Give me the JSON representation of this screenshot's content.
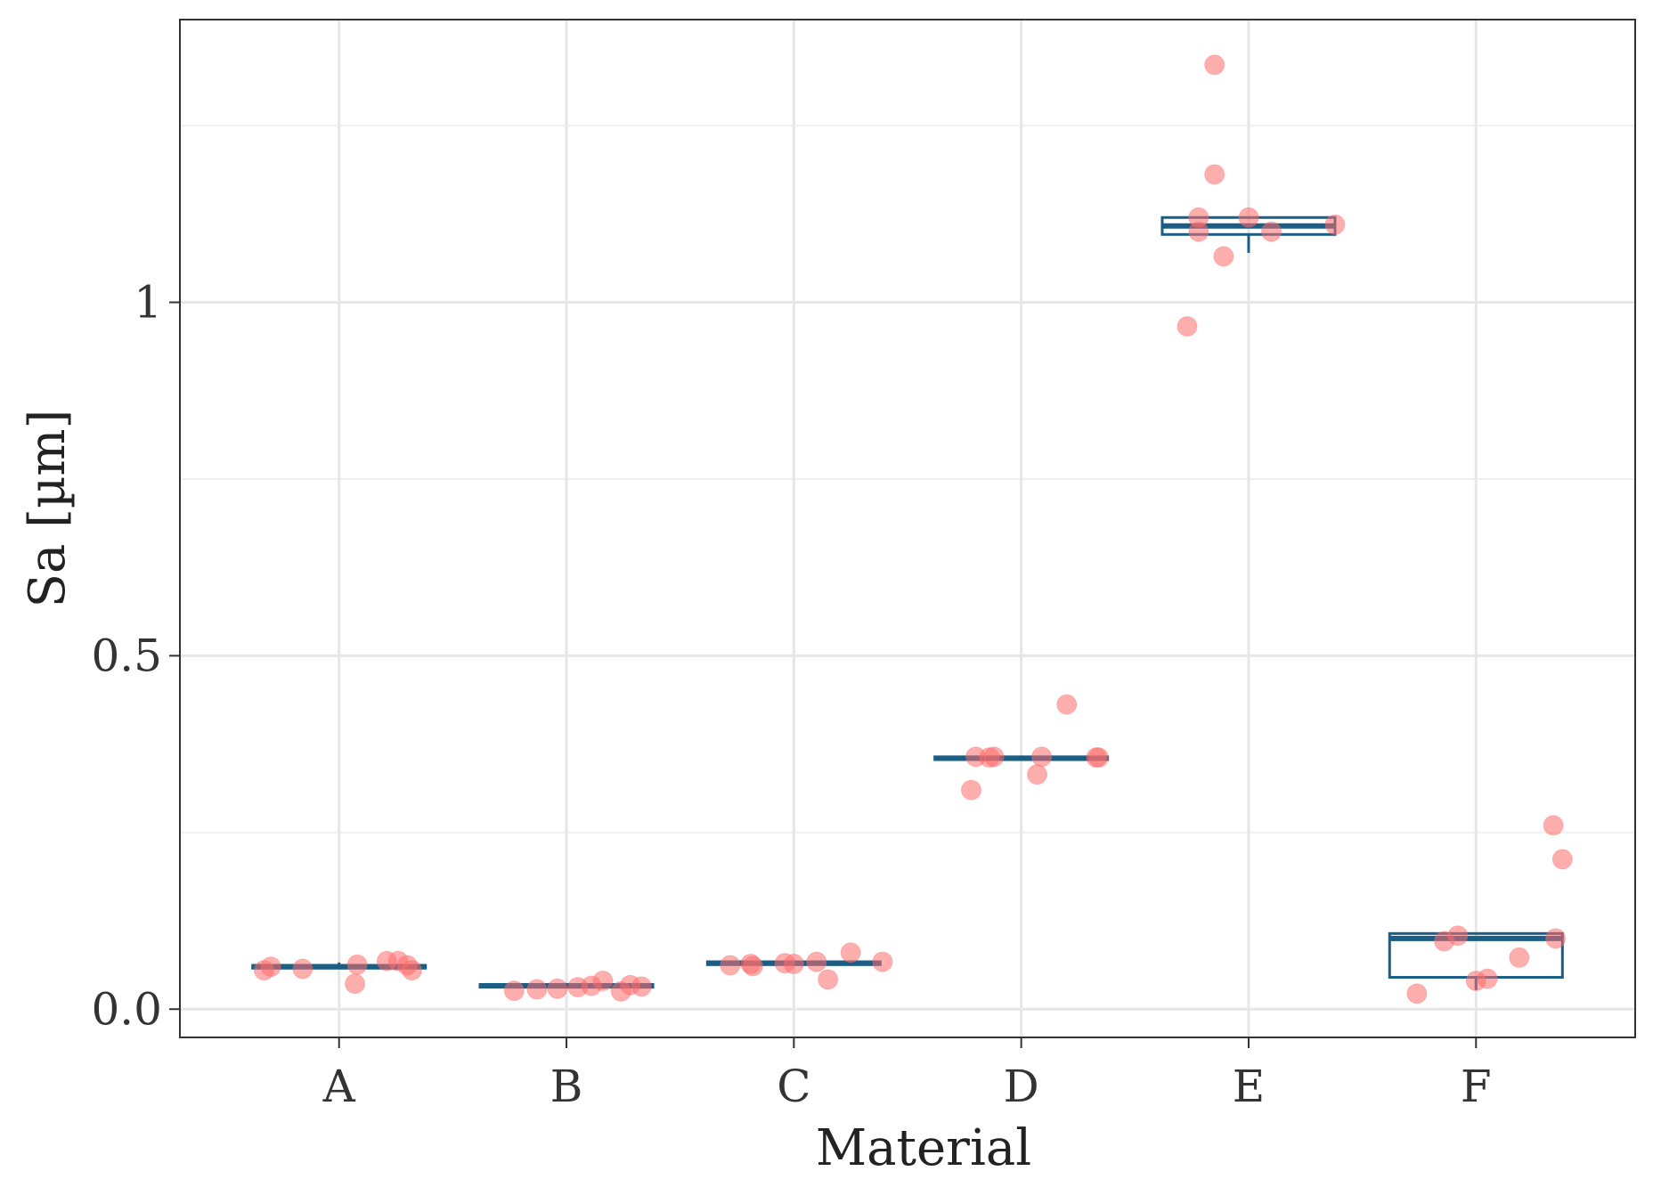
{
  "chart_data": {
    "type": "box",
    "title": "",
    "xlabel": "Material",
    "ylabel": "Sa [µm]",
    "ylim": [
      -0.04,
      1.4
    ],
    "yticks": [
      0.0,
      0.5,
      1.0
    ],
    "ytick_labels": [
      "0.0",
      "0.5",
      "1"
    ],
    "y_minor_gridlines": [
      0.25,
      0.75,
      1.25
    ],
    "grid": true,
    "categories": [
      "A",
      "B",
      "C",
      "D",
      "E",
      "F"
    ],
    "box_color": "#1a5e86",
    "point_color": "#ff6b6b",
    "boxes": [
      {
        "category": "A",
        "q1": 0.058,
        "median": 0.06,
        "q3": 0.062,
        "whisker_low": 0.058,
        "whisker_high": 0.066
      },
      {
        "category": "B",
        "q1": 0.031,
        "median": 0.033,
        "q3": 0.035,
        "whisker_low": 0.031,
        "whisker_high": 0.037
      },
      {
        "category": "C",
        "q1": 0.063,
        "median": 0.065,
        "q3": 0.067,
        "whisker_low": 0.063,
        "whisker_high": 0.068
      },
      {
        "category": "D",
        "q1": 0.353,
        "median": 0.355,
        "q3": 0.357,
        "whisker_low": 0.353,
        "whisker_high": 0.357
      },
      {
        "category": "E",
        "q1": 1.096,
        "median": 1.108,
        "q3": 1.12,
        "whisker_low": 1.07,
        "whisker_high": 1.12
      },
      {
        "category": "F",
        "q1": 0.045,
        "median": 0.1,
        "q3": 0.107,
        "whisker_low": 0.027,
        "whisker_high": 0.107
      }
    ],
    "points": [
      {
        "category": "A",
        "values": [
          0.055,
          0.06,
          0.057,
          0.036,
          0.063,
          0.068,
          0.068,
          0.062,
          0.055
        ],
        "offsets": [
          -0.33,
          -0.3,
          -0.16,
          0.07,
          0.08,
          0.21,
          0.26,
          0.3,
          0.32
        ]
      },
      {
        "category": "B",
        "values": [
          0.026,
          0.028,
          0.029,
          0.031,
          0.033,
          0.04,
          0.025,
          0.034,
          0.032
        ],
        "offsets": [
          -0.23,
          -0.13,
          -0.04,
          0.05,
          0.11,
          0.16,
          0.24,
          0.28,
          0.33
        ]
      },
      {
        "category": "C",
        "values": [
          0.062,
          0.064,
          0.061,
          0.065,
          0.064,
          0.067,
          0.042,
          0.08,
          0.067
        ],
        "offsets": [
          -0.28,
          -0.19,
          -0.18,
          -0.04,
          0.0,
          0.1,
          0.15,
          0.25,
          0.39
        ]
      },
      {
        "category": "D",
        "values": [
          0.357,
          0.356,
          0.357,
          0.31,
          0.357,
          0.332,
          0.431,
          0.356,
          0.356
        ],
        "offsets": [
          -0.2,
          -0.14,
          -0.12,
          -0.22,
          0.09,
          0.07,
          0.2,
          0.33,
          0.34
        ]
      },
      {
        "category": "E",
        "values": [
          1.336,
          1.181,
          1.12,
          1.1,
          1.065,
          0.966,
          1.12,
          1.1,
          1.11
        ],
        "offsets": [
          -0.15,
          -0.15,
          -0.22,
          -0.22,
          -0.11,
          -0.27,
          0.0,
          0.1,
          0.38
        ]
      },
      {
        "category": "F",
        "values": [
          0.022,
          0.096,
          0.104,
          0.04,
          0.043,
          0.073,
          0.1,
          0.26,
          0.212
        ],
        "offsets": [
          -0.26,
          -0.14,
          -0.08,
          0.0,
          0.05,
          0.19,
          0.35,
          0.34,
          0.38
        ]
      }
    ]
  }
}
